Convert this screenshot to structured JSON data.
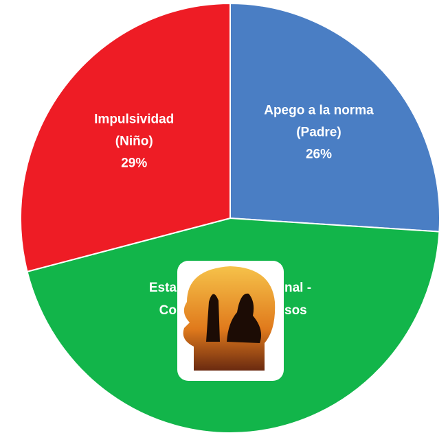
{
  "chart_data": {
    "type": "pie",
    "slices": [
      {
        "label_lines": [
          "Apego a la norma",
          "(Padre)"
        ],
        "value": 26,
        "value_label": "26%",
        "color": "#4a7ec4"
      },
      {
        "label_fragments": [
          [
            "Esta",
            "nal -"
          ],
          [
            "Co",
            "sos"
          ]
        ],
        "value": 45,
        "color": "#12b54a"
      },
      {
        "label_lines": [
          "Impulsividad",
          "(Niño)"
        ],
        "value": 29,
        "value_label": "29%",
        "color": "#ee1c25"
      }
    ]
  }
}
